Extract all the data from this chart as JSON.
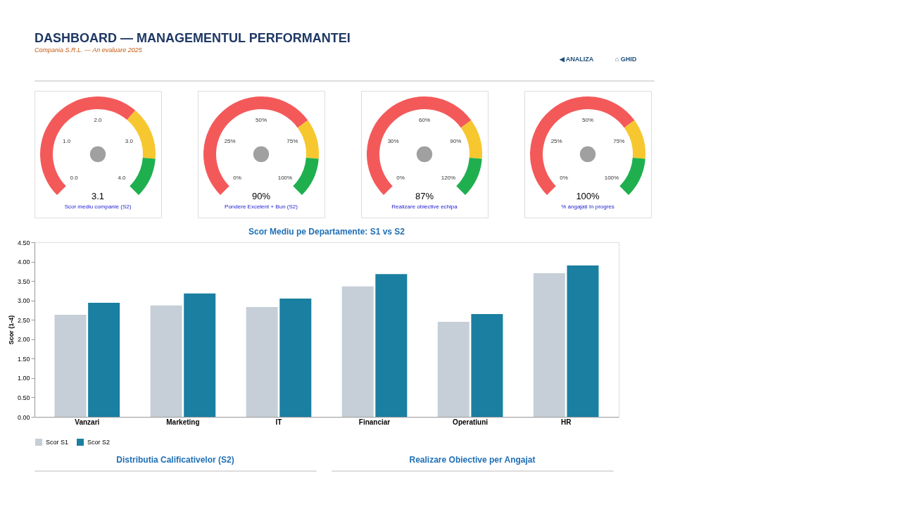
{
  "chart_data": [
    {
      "type": "other",
      "title": "DASHBOARD — MANAGEMENTUL PERFORMANTEI",
      "subtitle": "Compania S.R.L. — An evaluare 2025",
      "annotations": [
        "◀ ANALIZA",
        "⌂ GHID"
      ]
    },
    {
      "type": "donut",
      "title": "Scor mediu companie (S2)",
      "categories": [
        null,
        null,
        null
      ],
      "values": [
        65,
        20,
        15
      ],
      "colors": [
        "#f4595a",
        "#f7c730",
        "#1faf4f"
      ],
      "annotations": [
        "0.0",
        "1.0",
        "2.0",
        "3.0",
        "4.0",
        "3.1"
      ]
    },
    {
      "type": "donut",
      "title": "Pondere Excelent + Bun (S2)",
      "categories": [
        null,
        null,
        null
      ],
      "values": [
        70,
        15,
        15
      ],
      "colors": [
        "#f4595a",
        "#f7c730",
        "#1faf4f"
      ],
      "annotations": [
        "0%",
        "25%",
        "50%",
        "75%",
        "100%",
        "90%"
      ]
    },
    {
      "type": "donut",
      "title": "Realizare obiective echipa",
      "categories": [
        null,
        null,
        null
      ],
      "values": [
        70,
        15,
        15
      ],
      "colors": [
        "#f4595a",
        "#f7c730",
        "#1faf4f"
      ],
      "annotations": [
        "0%",
        "30%",
        "60%",
        "90%",
        "120%",
        "87%"
      ]
    },
    {
      "type": "donut",
      "title": "% angajați în progres",
      "categories": [
        null,
        null,
        null
      ],
      "values": [
        70,
        15,
        15
      ],
      "colors": [
        "#f4595a",
        "#f7c730",
        "#1faf4f"
      ],
      "annotations": [
        "0%",
        "25%",
        "50%",
        "75%",
        "100%",
        "100%"
      ]
    },
    {
      "type": "bar",
      "title": "Scor Mediu pe Departamente: S1 vs S2",
      "ylabel": "Scor (1-4)",
      "categories": [
        "Vanzari",
        "Marketing",
        "IT",
        "Financiar",
        "Operatiuni",
        "HR"
      ],
      "series": [
        {
          "name": "Scor S1",
          "color": "#c6cfd7",
          "values": [
            2.63,
            2.87,
            2.83,
            3.36,
            2.45,
            3.7
          ]
        },
        {
          "name": "Scor S2",
          "color": "#1a7fa0",
          "values": [
            2.94,
            3.18,
            3.05,
            3.68,
            2.65,
            3.9
          ]
        }
      ],
      "ylim": [
        0,
        4.5
      ],
      "yticks": [
        {
          "value": 0,
          "label": "0.00"
        },
        {
          "value": 0.5,
          "label": "0.50"
        },
        {
          "value": 1,
          "label": "1.00"
        },
        {
          "value": 1.5,
          "label": "1.50"
        },
        {
          "value": 2,
          "label": "2.00"
        },
        {
          "value": 2.5,
          "label": "2.50"
        },
        {
          "value": 3,
          "label": "3.00"
        },
        {
          "value": 3.5,
          "label": "3.50"
        },
        {
          "value": 4,
          "label": "4.00"
        },
        {
          "value": 4.5,
          "label": "4.50"
        }
      ],
      "grid": false,
      "legend": "bottom"
    },
    {
      "type": "other",
      "title": "Distributia Calificativelor (S2)"
    },
    {
      "type": "other",
      "title": "Realizare Obiective per Angajat"
    }
  ]
}
